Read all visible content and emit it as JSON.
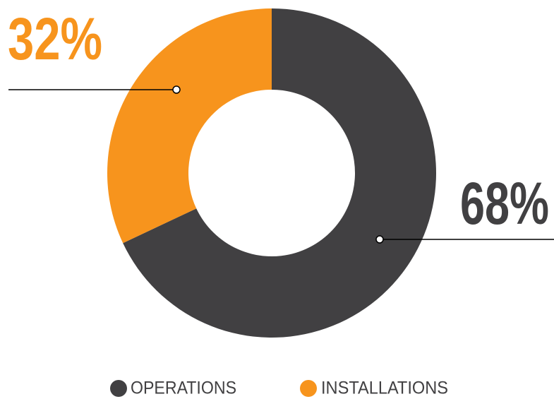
{
  "chart_data": {
    "type": "donut",
    "categories": [
      "OPERATIONS",
      "INSTALLATIONS"
    ],
    "values": [
      68,
      32
    ],
    "value_labels": [
      "68%",
      "32%"
    ],
    "colors": [
      "#414042",
      "#f7941d"
    ]
  }
}
